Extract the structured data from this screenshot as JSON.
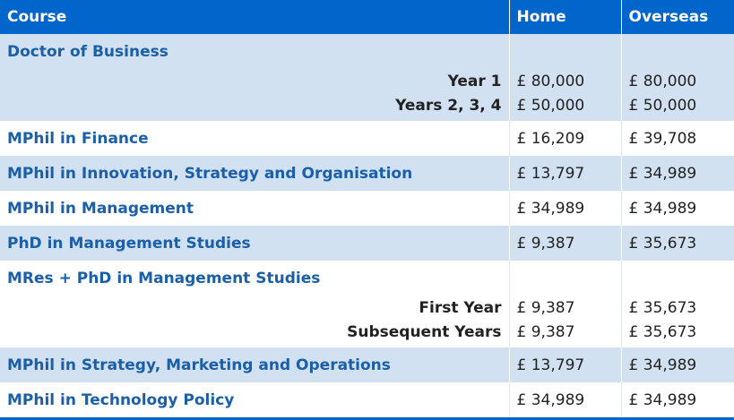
{
  "headers": {
    "course": "Course",
    "home": "Home",
    "overseas": "Overseas"
  },
  "colors": {
    "header_bg": "#0066cc",
    "band_bg": "#d2e1f2",
    "course_text": "#1a5fa8"
  },
  "rows": [
    {
      "course": "Doctor of Business",
      "sub": [
        {
          "label": "Year 1",
          "home": "£ 80,000",
          "overseas": "£ 80,000"
        },
        {
          "label": "Years 2, 3, 4",
          "home": "£ 50,000",
          "overseas": "£ 50,000"
        }
      ]
    },
    {
      "course": "MPhil in Finance",
      "home": "£ 16,209",
      "overseas": "£ 39,708"
    },
    {
      "course": "MPhil in Innovation, Strategy and Organisation",
      "home": "£ 13,797",
      "overseas": "£ 34,989"
    },
    {
      "course": "MPhil in Management",
      "home": "£ 34,989",
      "overseas": "£ 34,989"
    },
    {
      "course": "PhD in Management Studies",
      "home": "£ 9,387",
      "overseas": "£ 35,673"
    },
    {
      "course": "MRes + PhD in Management Studies",
      "sub": [
        {
          "label": "First Year",
          "home": "£ 9,387",
          "overseas": "£ 35,673"
        },
        {
          "label": "Subsequent Years",
          "home": "£ 9,387",
          "overseas": "£ 35,673"
        }
      ]
    },
    {
      "course": "MPhil in Strategy, Marketing and Operations",
      "home": "£ 13,797",
      "overseas": "£ 34,989"
    },
    {
      "course": "MPhil in Technology Policy",
      "home": "£ 34,989",
      "overseas": "£ 34,989"
    }
  ]
}
